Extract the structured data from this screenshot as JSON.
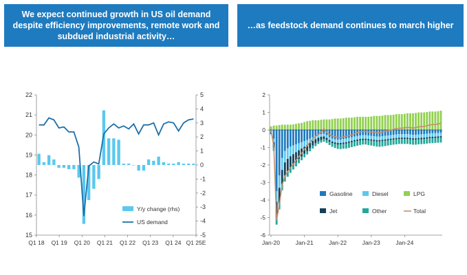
{
  "headers": {
    "left": "We expect continued growth in US oil demand despite efficiency improvements, remote work and subdued industrial activity…",
    "right": "…as feedstock demand continues to march higher"
  },
  "colors": {
    "header_bg": "#1f7bbf",
    "yy_bar": "#5bc8f0",
    "us_demand": "#1b6fa8",
    "gasoline": "#1f7bbf",
    "diesel": "#5bc8f0",
    "lpg": "#92d050",
    "jet": "#12405a",
    "other": "#22a89a",
    "total": "#c09070"
  },
  "chart_data": [
    {
      "type": "bar",
      "x_ticks": [
        "Q1 18",
        "Q1 19",
        "Q1 20",
        "Q1 21",
        "Q1 22",
        "Q1 23",
        "Q1 24",
        "Q1 25E"
      ],
      "y_left_ticks": [
        "22",
        "21",
        "20",
        "19",
        "18",
        "17",
        "16",
        "15"
      ],
      "y_right_ticks": [
        "5",
        "4",
        "3",
        "2",
        "1",
        "0",
        "-1",
        "-2",
        "-3",
        "-4",
        "-5"
      ],
      "ylim_left": [
        15,
        22
      ],
      "ylim_right": [
        -5,
        5
      ],
      "legend": [
        "Y/y change (rhs)",
        "US demand"
      ],
      "legend_position": "bottom-center",
      "series": [
        {
          "name": "Y/y change (rhs)",
          "axis": "right",
          "kind": "bar",
          "values": [
            0.8,
            0.2,
            0.7,
            0.4,
            -0.2,
            -0.2,
            -0.3,
            -0.3,
            -0.9,
            -4.2,
            -2.5,
            -1.7,
            -1.0,
            3.9,
            1.9,
            1.9,
            1.8,
            0.1,
            0.1,
            0.0,
            -0.4,
            -0.4,
            0.4,
            0.3,
            0.6,
            0.2,
            0.1,
            0.1,
            0.2,
            0.1,
            0.1,
            0.1
          ]
        },
        {
          "name": "US demand",
          "axis": "left",
          "kind": "line",
          "values": [
            20.5,
            20.5,
            20.85,
            20.75,
            20.35,
            20.4,
            20.15,
            20.15,
            19.4,
            15.95,
            18.45,
            18.65,
            18.55,
            20.05,
            20.35,
            20.55,
            20.35,
            20.45,
            20.3,
            20.55,
            20.05,
            20.5,
            20.5,
            20.6,
            20.0,
            20.55,
            20.65,
            20.6,
            20.2,
            20.6,
            20.75,
            20.8
          ]
        }
      ]
    },
    {
      "type": "bar",
      "stacked": true,
      "x_ticks": [
        "Jan-20",
        "Jan-21",
        "Jan-22",
        "Jan-23",
        "Jan-24"
      ],
      "y_ticks": [
        "2",
        "1",
        "0",
        "-1",
        "-2",
        "-3",
        "-4",
        "-5",
        "-6"
      ],
      "ylim": [
        -6,
        2
      ],
      "legend": [
        "Gasoline",
        "Diesel",
        "LPG",
        "Jet",
        "Other",
        "Total"
      ],
      "legend_position": "bottom-center",
      "series": [
        {
          "name": "Gasoline",
          "kind": "bar",
          "values": [
            -0.1,
            -0.5,
            -3.5,
            -2.6,
            -1.6,
            -1.2,
            -1.05,
            -0.95,
            -0.88,
            -0.82,
            -0.76,
            -0.7,
            -0.64,
            -0.58,
            -0.5,
            -0.42,
            -0.34,
            -0.28,
            -0.24,
            -0.22,
            -0.3,
            -0.42,
            -0.5,
            -0.54,
            -0.56,
            -0.55,
            -0.52,
            -0.5,
            -0.46,
            -0.42,
            -0.38,
            -0.35,
            -0.32,
            -0.3,
            -0.3,
            -0.32,
            -0.34,
            -0.36,
            -0.38,
            -0.38,
            -0.36,
            -0.34,
            -0.32,
            -0.3,
            -0.28,
            -0.26,
            -0.24,
            -0.24,
            -0.24,
            -0.24,
            -0.26,
            -0.28,
            -0.28,
            -0.26,
            -0.25,
            -0.24,
            -0.22,
            -0.2,
            -0.19,
            -0.18,
            -0.17,
            -0.16
          ]
        },
        {
          "name": "Diesel",
          "kind": "bar",
          "values": [
            -0.05,
            -0.2,
            -0.6,
            -0.7,
            -0.68,
            -0.65,
            -0.6,
            -0.55,
            -0.5,
            -0.45,
            -0.4,
            -0.36,
            -0.32,
            -0.28,
            -0.24,
            -0.2,
            -0.18,
            -0.16,
            -0.15,
            -0.15,
            -0.15,
            -0.15,
            -0.16,
            -0.17,
            -0.18,
            -0.19,
            -0.2,
            -0.2,
            -0.2,
            -0.2,
            -0.2,
            -0.2,
            -0.2,
            -0.2,
            -0.2,
            -0.2,
            -0.2,
            -0.2,
            -0.2,
            -0.2,
            -0.2,
            -0.2,
            -0.2,
            -0.2,
            -0.2,
            -0.2,
            -0.2,
            -0.2,
            -0.2,
            -0.2,
            -0.2,
            -0.2,
            -0.2,
            -0.2,
            -0.2,
            -0.2,
            -0.2,
            -0.2,
            -0.2,
            -0.2,
            -0.2,
            -0.2
          ]
        },
        {
          "name": "LPG",
          "kind": "bar",
          "values": [
            0.2,
            0.25,
            0.25,
            0.28,
            0.3,
            0.3,
            0.3,
            0.3,
            0.32,
            0.35,
            0.38,
            0.4,
            0.45,
            0.5,
            0.52,
            0.55,
            0.55,
            0.55,
            0.58,
            0.6,
            0.6,
            0.6,
            0.62,
            0.65,
            0.65,
            0.65,
            0.67,
            0.7,
            0.7,
            0.7,
            0.72,
            0.75,
            0.75,
            0.75,
            0.75,
            0.75,
            0.77,
            0.8,
            0.8,
            0.8,
            0.82,
            0.85,
            0.85,
            0.85,
            0.87,
            0.9,
            0.9,
            0.9,
            0.92,
            0.95,
            0.95,
            0.95,
            0.97,
            1.0,
            1.0,
            1.0,
            1.02,
            1.05,
            1.05,
            1.05,
            1.07,
            1.1
          ]
        },
        {
          "name": "Jet",
          "kind": "bar",
          "values": [
            -0.05,
            -0.3,
            -0.9,
            -0.85,
            -0.8,
            -0.75,
            -0.7,
            -0.65,
            -0.6,
            -0.55,
            -0.5,
            -0.45,
            -0.4,
            -0.35,
            -0.3,
            -0.27,
            -0.24,
            -0.21,
            -0.18,
            -0.15,
            -0.13,
            -0.11,
            -0.1,
            -0.1,
            -0.1,
            -0.09,
            -0.08,
            -0.08,
            -0.08,
            -0.08,
            -0.08,
            -0.08,
            -0.08,
            -0.08,
            -0.08,
            -0.08,
            -0.08,
            -0.08,
            -0.08,
            -0.08,
            -0.08,
            -0.08,
            -0.08,
            -0.08,
            -0.08,
            -0.08,
            -0.08,
            -0.08,
            -0.08,
            -0.08,
            -0.08,
            -0.08,
            -0.08,
            -0.08,
            -0.08,
            -0.08,
            -0.08,
            -0.08,
            -0.08,
            -0.08,
            -0.08,
            -0.08
          ]
        },
        {
          "name": "Other",
          "kind": "bar",
          "values": [
            -0.05,
            -0.2,
            -0.4,
            -0.38,
            -0.36,
            -0.34,
            -0.32,
            -0.3,
            -0.28,
            -0.26,
            -0.24,
            -0.22,
            -0.2,
            -0.19,
            -0.18,
            -0.17,
            -0.16,
            -0.15,
            -0.15,
            -0.15,
            -0.16,
            -0.18,
            -0.2,
            -0.22,
            -0.24,
            -0.26,
            -0.27,
            -0.28,
            -0.28,
            -0.28,
            -0.28,
            -0.27,
            -0.26,
            -0.25,
            -0.25,
            -0.26,
            -0.27,
            -0.28,
            -0.29,
            -0.3,
            -0.3,
            -0.3,
            -0.29,
            -0.28,
            -0.28,
            -0.28,
            -0.28,
            -0.28,
            -0.28,
            -0.28,
            -0.28,
            -0.28,
            -0.28,
            -0.28,
            -0.28,
            -0.28,
            -0.28,
            -0.28,
            -0.28,
            -0.28,
            -0.28,
            -0.28
          ]
        },
        {
          "name": "Total",
          "kind": "line",
          "values": [
            0.0,
            -0.95,
            -5.15,
            -4.25,
            -3.14,
            -2.64,
            -2.37,
            -2.15,
            -1.94,
            -1.73,
            -1.52,
            -1.33,
            -1.11,
            -0.9,
            -0.7,
            -0.51,
            -0.37,
            -0.25,
            -0.14,
            0.08,
            -0.14,
            -0.26,
            -0.34,
            -0.38,
            -0.43,
            -0.44,
            -0.4,
            -0.36,
            -0.32,
            -0.28,
            -0.22,
            -0.15,
            -0.11,
            -0.08,
            -0.08,
            -0.11,
            -0.12,
            -0.12,
            -0.15,
            -0.16,
            -0.12,
            -0.07,
            -0.04,
            -0.01,
            0.03,
            0.08,
            0.1,
            0.1,
            0.12,
            0.15,
            0.13,
            0.11,
            0.13,
            0.18,
            0.19,
            0.2,
            0.24,
            0.29,
            0.3,
            0.31,
            0.34,
            0.38
          ]
        }
      ]
    }
  ]
}
